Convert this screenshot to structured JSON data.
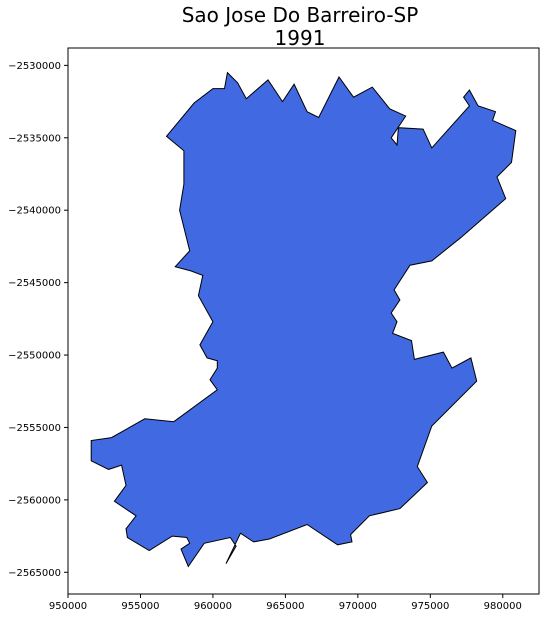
{
  "title": {
    "line1": "Sao Jose Do Barreiro-SP",
    "line2": "1991"
  },
  "colors": {
    "fill": "#4169e1",
    "stroke": "#000000",
    "axis": "#000000",
    "background": "#ffffff"
  },
  "chart_data": {
    "type": "map",
    "title": "Sao Jose Do Barreiro-SP 1991",
    "xlabel": "",
    "ylabel": "",
    "xlim": [
      950000,
      982500
    ],
    "ylim": [
      -2566500,
      -2528800
    ],
    "x_ticks": [
      950000,
      955000,
      960000,
      965000,
      970000,
      975000,
      980000
    ],
    "x_tick_labels": [
      "950000",
      "955000",
      "960000",
      "965000",
      "970000",
      "975000",
      "980000"
    ],
    "y_ticks": [
      -2530000,
      -2535000,
      -2540000,
      -2545000,
      -2550000,
      -2555000,
      -2560000,
      -2565000
    ],
    "y_tick_labels": [
      "−2530000",
      "−2535000",
      "−2540000",
      "−2545000",
      "−2550000",
      "−2555000",
      "−2560000",
      "−2565000"
    ],
    "grid": false,
    "region": {
      "coordinates": [
        [
          961000,
          -2530500
        ],
        [
          961700,
          -2531200
        ],
        [
          962300,
          -2532300
        ],
        [
          963800,
          -2531000
        ],
        [
          964800,
          -2532500
        ],
        [
          965600,
          -2531300
        ],
        [
          966500,
          -2533200
        ],
        [
          967300,
          -2533600
        ],
        [
          968700,
          -2530800
        ],
        [
          969700,
          -2532200
        ],
        [
          971000,
          -2531500
        ],
        [
          972200,
          -2533000
        ],
        [
          973300,
          -2533500
        ],
        [
          972300,
          -2535000
        ],
        [
          972700,
          -2535500
        ],
        [
          972800,
          -2534300
        ],
        [
          974500,
          -2534400
        ],
        [
          975100,
          -2535700
        ],
        [
          977700,
          -2532800
        ],
        [
          977300,
          -2532200
        ],
        [
          977700,
          -2531700
        ],
        [
          978300,
          -2532800
        ],
        [
          979500,
          -2533200
        ],
        [
          979300,
          -2533800
        ],
        [
          980900,
          -2534500
        ],
        [
          980600,
          -2536700
        ],
        [
          979600,
          -2537700
        ],
        [
          980200,
          -2539200
        ],
        [
          977100,
          -2541900
        ],
        [
          975100,
          -2543500
        ],
        [
          973600,
          -2543800
        ],
        [
          972500,
          -2545500
        ],
        [
          972900,
          -2546200
        ],
        [
          972300,
          -2547100
        ],
        [
          972700,
          -2547700
        ],
        [
          972400,
          -2548500
        ],
        [
          973700,
          -2549000
        ],
        [
          973900,
          -2550300
        ],
        [
          975900,
          -2549800
        ],
        [
          976500,
          -2550900
        ],
        [
          977800,
          -2550200
        ],
        [
          978200,
          -2551800
        ],
        [
          975100,
          -2554900
        ],
        [
          974100,
          -2557700
        ],
        [
          974800,
          -2558800
        ],
        [
          972900,
          -2560600
        ],
        [
          970800,
          -2561100
        ],
        [
          969500,
          -2562400
        ],
        [
          969600,
          -2562900
        ],
        [
          968600,
          -2563100
        ],
        [
          966500,
          -2561700
        ],
        [
          963900,
          -2562700
        ],
        [
          962800,
          -2562900
        ],
        [
          961900,
          -2562300
        ],
        [
          960900,
          -2564400
        ],
        [
          961600,
          -2563200
        ],
        [
          961200,
          -2562600
        ],
        [
          959400,
          -2563000
        ],
        [
          958300,
          -2564600
        ],
        [
          957800,
          -2563400
        ],
        [
          958400,
          -2563000
        ],
        [
          958200,
          -2562600
        ],
        [
          957200,
          -2562500
        ],
        [
          955600,
          -2563500
        ],
        [
          954100,
          -2562600
        ],
        [
          954000,
          -2562000
        ],
        [
          954700,
          -2561100
        ],
        [
          953200,
          -2560100
        ],
        [
          954000,
          -2559000
        ],
        [
          953700,
          -2557600
        ],
        [
          952800,
          -2557900
        ],
        [
          951600,
          -2557300
        ],
        [
          951600,
          -2555900
        ],
        [
          953000,
          -2555700
        ],
        [
          955300,
          -2554400
        ],
        [
          957300,
          -2554600
        ],
        [
          960300,
          -2552400
        ],
        [
          959800,
          -2551700
        ],
        [
          960300,
          -2550900
        ],
        [
          960300,
          -2550400
        ],
        [
          959600,
          -2550200
        ],
        [
          959100,
          -2549300
        ],
        [
          960000,
          -2547700
        ],
        [
          959000,
          -2545900
        ],
        [
          959300,
          -2544500
        ],
        [
          958500,
          -2544200
        ],
        [
          957400,
          -2543900
        ],
        [
          958400,
          -2542800
        ],
        [
          957700,
          -2540000
        ],
        [
          958000,
          -2538200
        ],
        [
          958000,
          -2535900
        ],
        [
          956800,
          -2534900
        ],
        [
          958700,
          -2532600
        ],
        [
          960000,
          -2531600
        ],
        [
          960800,
          -2531600
        ]
      ]
    }
  }
}
